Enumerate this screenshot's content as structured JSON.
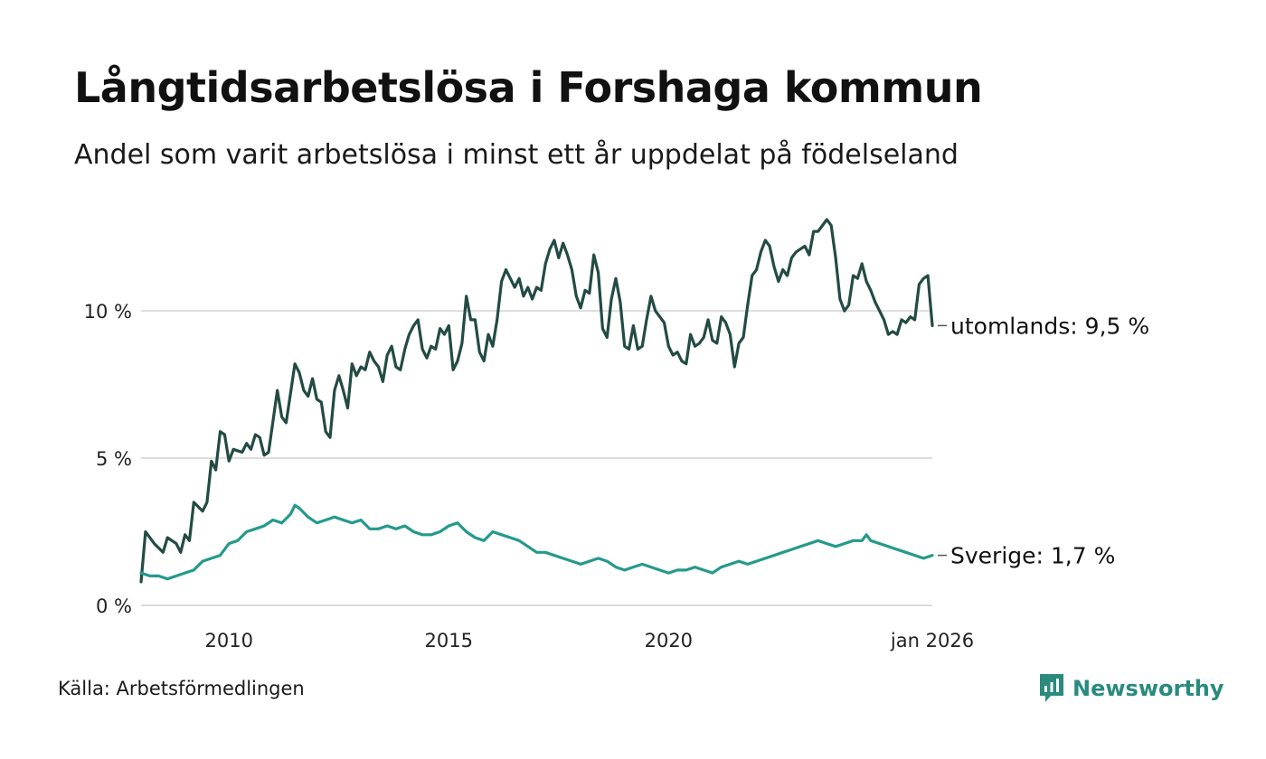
{
  "title": "Långtidsarbetslösa i Forshaga kommun",
  "subtitle": "Andel som varit arbetslösa i minst ett år uppdelat på födelseland",
  "source": "Källa: Arbetsförmedlingen",
  "brand": "Newsworthy",
  "colors": {
    "utomlands": "#234b44",
    "sverige": "#249a8b",
    "grid": "#dddddd",
    "brand": "#2a8a7e"
  },
  "chart_data": {
    "type": "line",
    "title": "Långtidsarbetslösa i Forshaga kommun",
    "ylabel": "",
    "ylim": [
      0,
      13.5
    ],
    "y_ticks": [
      {
        "value": 0,
        "label": "0 %"
      },
      {
        "value": 5,
        "label": "5 %"
      },
      {
        "value": 10,
        "label": "10 %"
      }
    ],
    "x_range": [
      2008.0,
      2026.0
    ],
    "x_ticks": [
      {
        "value": 2010,
        "label": "2010"
      },
      {
        "value": 2015,
        "label": "2015"
      },
      {
        "value": 2020,
        "label": "2020"
      },
      {
        "value": 2026.0,
        "label": "jan 2026"
      }
    ],
    "series": [
      {
        "name": "utomlands",
        "end_label": "utomlands: 9,5 %",
        "points": [
          [
            2008.0,
            0.8
          ],
          [
            2008.1,
            2.5
          ],
          [
            2008.3,
            2.1
          ],
          [
            2008.5,
            1.8
          ],
          [
            2008.6,
            2.3
          ],
          [
            2008.8,
            2.1
          ],
          [
            2008.9,
            1.8
          ],
          [
            2009.0,
            2.4
          ],
          [
            2009.1,
            2.2
          ],
          [
            2009.2,
            3.5
          ],
          [
            2009.4,
            3.2
          ],
          [
            2009.5,
            3.5
          ],
          [
            2009.6,
            4.9
          ],
          [
            2009.7,
            4.6
          ],
          [
            2009.8,
            5.9
          ],
          [
            2009.9,
            5.8
          ],
          [
            2010.0,
            4.9
          ],
          [
            2010.1,
            5.3
          ],
          [
            2010.3,
            5.2
          ],
          [
            2010.4,
            5.5
          ],
          [
            2010.5,
            5.3
          ],
          [
            2010.6,
            5.8
          ],
          [
            2010.7,
            5.7
          ],
          [
            2010.8,
            5.1
          ],
          [
            2010.9,
            5.2
          ],
          [
            2011.1,
            7.3
          ],
          [
            2011.2,
            6.4
          ],
          [
            2011.3,
            6.2
          ],
          [
            2011.4,
            7.2
          ],
          [
            2011.5,
            8.2
          ],
          [
            2011.6,
            7.9
          ],
          [
            2011.7,
            7.3
          ],
          [
            2011.8,
            7.1
          ],
          [
            2011.9,
            7.7
          ],
          [
            2012.0,
            7.0
          ],
          [
            2012.1,
            6.9
          ],
          [
            2012.2,
            5.9
          ],
          [
            2012.3,
            5.7
          ],
          [
            2012.4,
            7.3
          ],
          [
            2012.5,
            7.8
          ],
          [
            2012.6,
            7.3
          ],
          [
            2012.7,
            6.7
          ],
          [
            2012.8,
            8.2
          ],
          [
            2012.9,
            7.8
          ],
          [
            2013.0,
            8.1
          ],
          [
            2013.1,
            8.0
          ],
          [
            2013.2,
            8.6
          ],
          [
            2013.3,
            8.3
          ],
          [
            2013.4,
            8.1
          ],
          [
            2013.5,
            7.6
          ],
          [
            2013.6,
            8.5
          ],
          [
            2013.7,
            8.8
          ],
          [
            2013.8,
            8.1
          ],
          [
            2013.9,
            8.0
          ],
          [
            2014.0,
            8.7
          ],
          [
            2014.1,
            9.2
          ],
          [
            2014.2,
            9.5
          ],
          [
            2014.3,
            9.7
          ],
          [
            2014.4,
            8.7
          ],
          [
            2014.5,
            8.4
          ],
          [
            2014.6,
            8.8
          ],
          [
            2014.7,
            8.7
          ],
          [
            2014.8,
            9.4
          ],
          [
            2014.9,
            9.2
          ],
          [
            2015.0,
            9.5
          ],
          [
            2015.1,
            8.0
          ],
          [
            2015.2,
            8.3
          ],
          [
            2015.3,
            8.9
          ],
          [
            2015.4,
            10.5
          ],
          [
            2015.5,
            9.7
          ],
          [
            2015.6,
            9.7
          ],
          [
            2015.7,
            8.6
          ],
          [
            2015.8,
            8.3
          ],
          [
            2015.9,
            9.2
          ],
          [
            2016.0,
            8.8
          ],
          [
            2016.1,
            9.7
          ],
          [
            2016.2,
            11.0
          ],
          [
            2016.3,
            11.4
          ],
          [
            2016.5,
            10.8
          ],
          [
            2016.6,
            11.1
          ],
          [
            2016.7,
            10.5
          ],
          [
            2016.8,
            10.8
          ],
          [
            2016.9,
            10.4
          ],
          [
            2017.0,
            10.8
          ],
          [
            2017.1,
            10.7
          ],
          [
            2017.2,
            11.6
          ],
          [
            2017.3,
            12.1
          ],
          [
            2017.4,
            12.4
          ],
          [
            2017.5,
            11.8
          ],
          [
            2017.6,
            12.3
          ],
          [
            2017.7,
            11.9
          ],
          [
            2017.8,
            11.4
          ],
          [
            2017.9,
            10.5
          ],
          [
            2018.0,
            10.1
          ],
          [
            2018.1,
            10.7
          ],
          [
            2018.2,
            10.6
          ],
          [
            2018.3,
            11.9
          ],
          [
            2018.4,
            11.3
          ],
          [
            2018.5,
            9.4
          ],
          [
            2018.6,
            9.1
          ],
          [
            2018.7,
            10.4
          ],
          [
            2018.8,
            11.1
          ],
          [
            2018.9,
            10.3
          ],
          [
            2019.0,
            8.8
          ],
          [
            2019.1,
            8.7
          ],
          [
            2019.2,
            9.5
          ],
          [
            2019.3,
            8.7
          ],
          [
            2019.4,
            8.8
          ],
          [
            2019.5,
            9.7
          ],
          [
            2019.6,
            10.5
          ],
          [
            2019.7,
            10.0
          ],
          [
            2019.8,
            9.8
          ],
          [
            2019.9,
            9.6
          ],
          [
            2020.0,
            8.8
          ],
          [
            2020.1,
            8.5
          ],
          [
            2020.2,
            8.6
          ],
          [
            2020.3,
            8.3
          ],
          [
            2020.4,
            8.2
          ],
          [
            2020.5,
            9.2
          ],
          [
            2020.6,
            8.8
          ],
          [
            2020.7,
            8.9
          ],
          [
            2020.8,
            9.1
          ],
          [
            2020.9,
            9.7
          ],
          [
            2021.0,
            9.0
          ],
          [
            2021.1,
            8.9
          ],
          [
            2021.2,
            9.8
          ],
          [
            2021.3,
            9.6
          ],
          [
            2021.4,
            9.2
          ],
          [
            2021.5,
            8.1
          ],
          [
            2021.6,
            8.9
          ],
          [
            2021.7,
            9.1
          ],
          [
            2021.8,
            10.2
          ],
          [
            2021.9,
            11.2
          ],
          [
            2022.0,
            11.4
          ],
          [
            2022.1,
            12.0
          ],
          [
            2022.2,
            12.4
          ],
          [
            2022.3,
            12.2
          ],
          [
            2022.4,
            11.5
          ],
          [
            2022.5,
            11.0
          ],
          [
            2022.6,
            11.4
          ],
          [
            2022.7,
            11.2
          ],
          [
            2022.8,
            11.8
          ],
          [
            2022.9,
            12.0
          ],
          [
            2023.0,
            12.1
          ],
          [
            2023.1,
            12.2
          ],
          [
            2023.2,
            11.9
          ],
          [
            2023.3,
            12.7
          ],
          [
            2023.4,
            12.7
          ],
          [
            2023.5,
            12.9
          ],
          [
            2023.6,
            13.1
          ],
          [
            2023.7,
            12.9
          ],
          [
            2023.8,
            11.8
          ],
          [
            2023.9,
            10.4
          ],
          [
            2024.0,
            10.0
          ],
          [
            2024.1,
            10.2
          ],
          [
            2024.2,
            11.2
          ],
          [
            2024.3,
            11.1
          ],
          [
            2024.4,
            11.6
          ],
          [
            2024.5,
            11.0
          ],
          [
            2024.6,
            10.7
          ],
          [
            2024.7,
            10.3
          ],
          [
            2024.8,
            10.0
          ],
          [
            2024.9,
            9.7
          ],
          [
            2025.0,
            9.2
          ],
          [
            2025.1,
            9.3
          ],
          [
            2025.2,
            9.2
          ],
          [
            2025.3,
            9.7
          ],
          [
            2025.4,
            9.6
          ],
          [
            2025.5,
            9.8
          ],
          [
            2025.6,
            9.7
          ],
          [
            2025.7,
            10.9
          ],
          [
            2025.8,
            11.1
          ],
          [
            2025.9,
            11.2
          ],
          [
            2026.0,
            9.5
          ]
        ]
      },
      {
        "name": "Sverige",
        "end_label": "Sverige: 1,7 %",
        "points": [
          [
            2008.0,
            1.1
          ],
          [
            2008.2,
            1.0
          ],
          [
            2008.4,
            1.0
          ],
          [
            2008.6,
            0.9
          ],
          [
            2008.8,
            1.0
          ],
          [
            2009.0,
            1.1
          ],
          [
            2009.2,
            1.2
          ],
          [
            2009.4,
            1.5
          ],
          [
            2009.6,
            1.6
          ],
          [
            2009.8,
            1.7
          ],
          [
            2010.0,
            2.1
          ],
          [
            2010.2,
            2.2
          ],
          [
            2010.4,
            2.5
          ],
          [
            2010.6,
            2.6
          ],
          [
            2010.8,
            2.7
          ],
          [
            2011.0,
            2.9
          ],
          [
            2011.2,
            2.8
          ],
          [
            2011.4,
            3.1
          ],
          [
            2011.5,
            3.4
          ],
          [
            2011.6,
            3.3
          ],
          [
            2011.8,
            3.0
          ],
          [
            2012.0,
            2.8
          ],
          [
            2012.2,
            2.9
          ],
          [
            2012.4,
            3.0
          ],
          [
            2012.6,
            2.9
          ],
          [
            2012.8,
            2.8
          ],
          [
            2013.0,
            2.9
          ],
          [
            2013.2,
            2.6
          ],
          [
            2013.4,
            2.6
          ],
          [
            2013.6,
            2.7
          ],
          [
            2013.8,
            2.6
          ],
          [
            2014.0,
            2.7
          ],
          [
            2014.2,
            2.5
          ],
          [
            2014.4,
            2.4
          ],
          [
            2014.6,
            2.4
          ],
          [
            2014.8,
            2.5
          ],
          [
            2015.0,
            2.7
          ],
          [
            2015.2,
            2.8
          ],
          [
            2015.4,
            2.5
          ],
          [
            2015.6,
            2.3
          ],
          [
            2015.8,
            2.2
          ],
          [
            2016.0,
            2.5
          ],
          [
            2016.2,
            2.4
          ],
          [
            2016.4,
            2.3
          ],
          [
            2016.6,
            2.2
          ],
          [
            2016.8,
            2.0
          ],
          [
            2017.0,
            1.8
          ],
          [
            2017.2,
            1.8
          ],
          [
            2017.4,
            1.7
          ],
          [
            2017.6,
            1.6
          ],
          [
            2017.8,
            1.5
          ],
          [
            2018.0,
            1.4
          ],
          [
            2018.2,
            1.5
          ],
          [
            2018.4,
            1.6
          ],
          [
            2018.6,
            1.5
          ],
          [
            2018.8,
            1.3
          ],
          [
            2019.0,
            1.2
          ],
          [
            2019.2,
            1.3
          ],
          [
            2019.4,
            1.4
          ],
          [
            2019.6,
            1.3
          ],
          [
            2019.8,
            1.2
          ],
          [
            2020.0,
            1.1
          ],
          [
            2020.2,
            1.2
          ],
          [
            2020.4,
            1.2
          ],
          [
            2020.6,
            1.3
          ],
          [
            2020.8,
            1.2
          ],
          [
            2021.0,
            1.1
          ],
          [
            2021.2,
            1.3
          ],
          [
            2021.4,
            1.4
          ],
          [
            2021.6,
            1.5
          ],
          [
            2021.8,
            1.4
          ],
          [
            2022.0,
            1.5
          ],
          [
            2022.2,
            1.6
          ],
          [
            2022.4,
            1.7
          ],
          [
            2022.6,
            1.8
          ],
          [
            2022.8,
            1.9
          ],
          [
            2023.0,
            2.0
          ],
          [
            2023.2,
            2.1
          ],
          [
            2023.4,
            2.2
          ],
          [
            2023.6,
            2.1
          ],
          [
            2023.8,
            2.0
          ],
          [
            2024.0,
            2.1
          ],
          [
            2024.2,
            2.2
          ],
          [
            2024.4,
            2.2
          ],
          [
            2024.5,
            2.4
          ],
          [
            2024.6,
            2.2
          ],
          [
            2024.8,
            2.1
          ],
          [
            2025.0,
            2.0
          ],
          [
            2025.2,
            1.9
          ],
          [
            2025.4,
            1.8
          ],
          [
            2025.6,
            1.7
          ],
          [
            2025.8,
            1.6
          ],
          [
            2026.0,
            1.7
          ]
        ]
      }
    ]
  }
}
